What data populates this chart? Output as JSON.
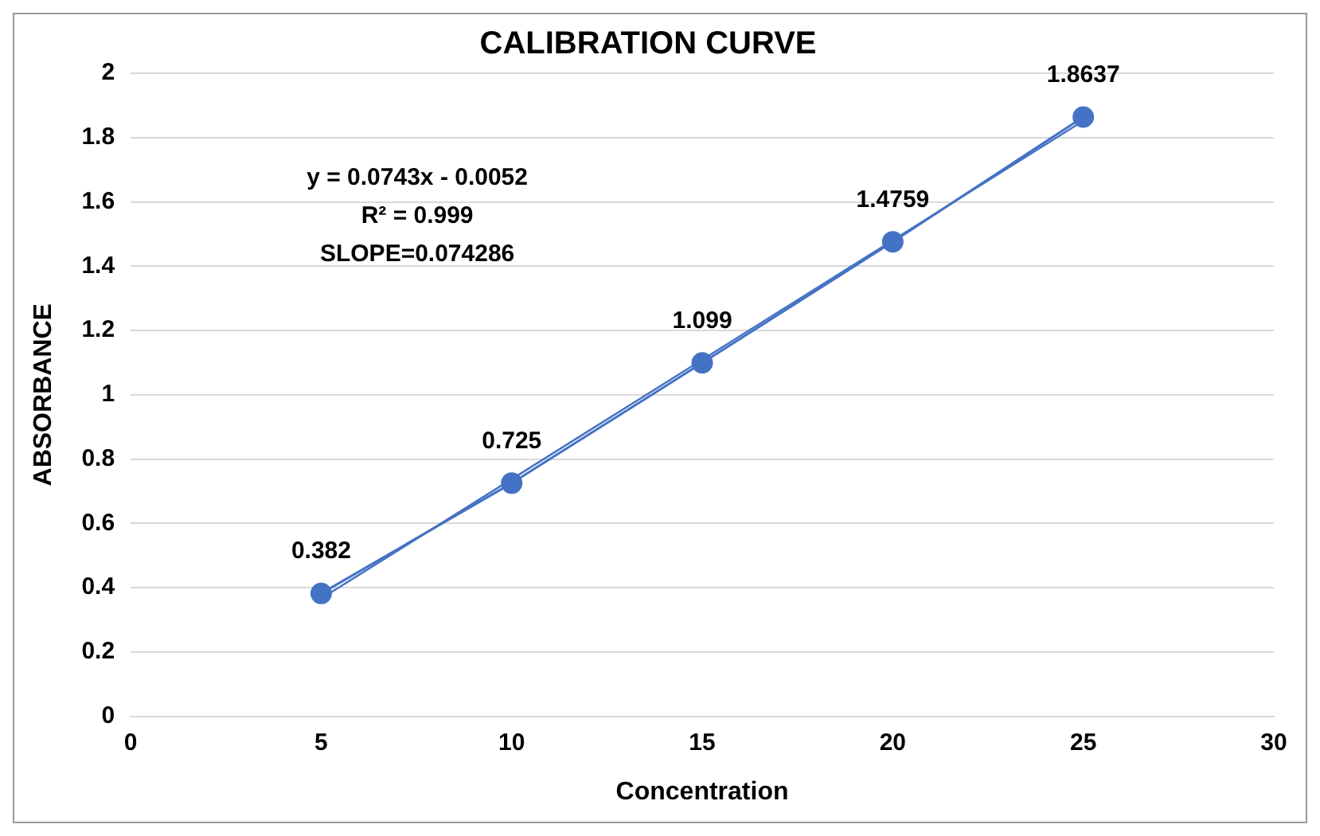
{
  "chart_data": {
    "type": "line",
    "title": "CALIBRATION CURVE",
    "xlabel": "Concentration",
    "ylabel": "ABSORBANCE",
    "annotations": [
      "y = 0.0743x - 0.0052",
      "R² = 0.999",
      "SLOPE=0.074286"
    ],
    "series": [
      {
        "color": "#4472c4",
        "x": [
          5,
          10,
          15,
          20,
          25
        ],
        "values": [
          0.382,
          0.725,
          1.099,
          1.4759,
          1.8637
        ],
        "value_labels": [
          "0.382",
          "0.725",
          "1.099",
          "1.4759",
          "1.8637"
        ]
      },
      {
        "type": "line",
        "marker": "none",
        "color": "#4472c4",
        "x": [
          5,
          25
        ],
        "values": [
          0.366,
          1.852
        ]
      }
    ],
    "xlim": [
      0,
      30
    ],
    "xticks": [
      0,
      5,
      10,
      15,
      20,
      25,
      30
    ],
    "ylim": [
      0,
      2
    ],
    "yticks": [
      0,
      0.2,
      0.4,
      0.6,
      0.8,
      1,
      1.2,
      1.4,
      1.6,
      1.8,
      2
    ],
    "grid": "y",
    "legend": false,
    "marker": "circle"
  }
}
